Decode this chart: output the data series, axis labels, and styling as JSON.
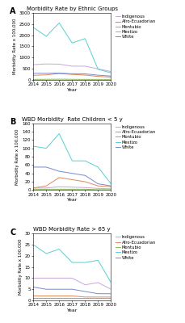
{
  "years": [
    2014,
    2015,
    2016,
    2017,
    2018,
    2019,
    2020
  ],
  "panel_A": {
    "title": "Morbidity Rate by Ethnic Groups",
    "ylabel": "Morbidity Rate x 100,000",
    "ylim": [
      0,
      3000
    ],
    "yticks": [
      0,
      500,
      1000,
      1500,
      2000,
      2500,
      3000
    ],
    "Indigenous": [
      680,
      710,
      700,
      610,
      610,
      490,
      370
    ],
    "Afro-Ecuadorian": [
      200,
      220,
      280,
      240,
      210,
      150,
      120
    ],
    "Montubio": [
      15,
      20,
      25,
      20,
      15,
      15,
      15
    ],
    "Mestizo": [
      2350,
      1950,
      2550,
      1650,
      1850,
      470,
      310
    ],
    "White": [
      290,
      290,
      300,
      270,
      265,
      205,
      165
    ]
  },
  "panel_B": {
    "title": "WBD Morbidity  Rate Children < 5 y",
    "ylabel": "Morbidity Rate x 100,000",
    "ylim": [
      0,
      160
    ],
    "yticks": [
      0,
      20,
      40,
      60,
      80,
      100,
      120,
      140,
      160
    ],
    "Indigenous": [
      5,
      5,
      8,
      7,
      6,
      4,
      3
    ],
    "Afro-Ecuadorian": [
      5,
      10,
      30,
      25,
      20,
      10,
      8
    ],
    "Montubio": [
      2,
      2,
      2,
      2,
      2,
      1,
      1
    ],
    "Mestizo": [
      105,
      100,
      135,
      70,
      70,
      55,
      15
    ],
    "White": [
      55,
      55,
      45,
      40,
      35,
      15,
      10
    ]
  },
  "panel_C": {
    "title": "WBD Morbidity Rate > 65 y",
    "ylabel": "Morbidity Rate x 100,000",
    "ylim": [
      0,
      30
    ],
    "yticks": [
      0,
      5,
      10,
      15,
      20,
      25,
      30
    ],
    "Indigenous": [
      10,
      10,
      10,
      10,
      7,
      8,
      5
    ],
    "Afro-Ecuadorian": [
      2,
      2,
      2,
      2,
      1.5,
      1.5,
      1.5
    ],
    "Montubio": [
      1,
      1,
      1,
      1,
      1,
      1,
      1
    ],
    "Mestizo": [
      25,
      21,
      23,
      17,
      17,
      18,
      8
    ],
    "White": [
      6,
      5,
      5,
      5,
      4,
      3,
      3
    ]
  },
  "colors": {
    "Indigenous": "#c8a8d8",
    "Afro-Ecuadorian": "#e08858",
    "Montubio": "#88bb55",
    "Mestizo": "#55d0d0",
    "White": "#7888cc"
  },
  "legend_order": [
    "Indigenous",
    "Afro-Ecuadorian",
    "Montubio",
    "Mestizo",
    "White"
  ]
}
